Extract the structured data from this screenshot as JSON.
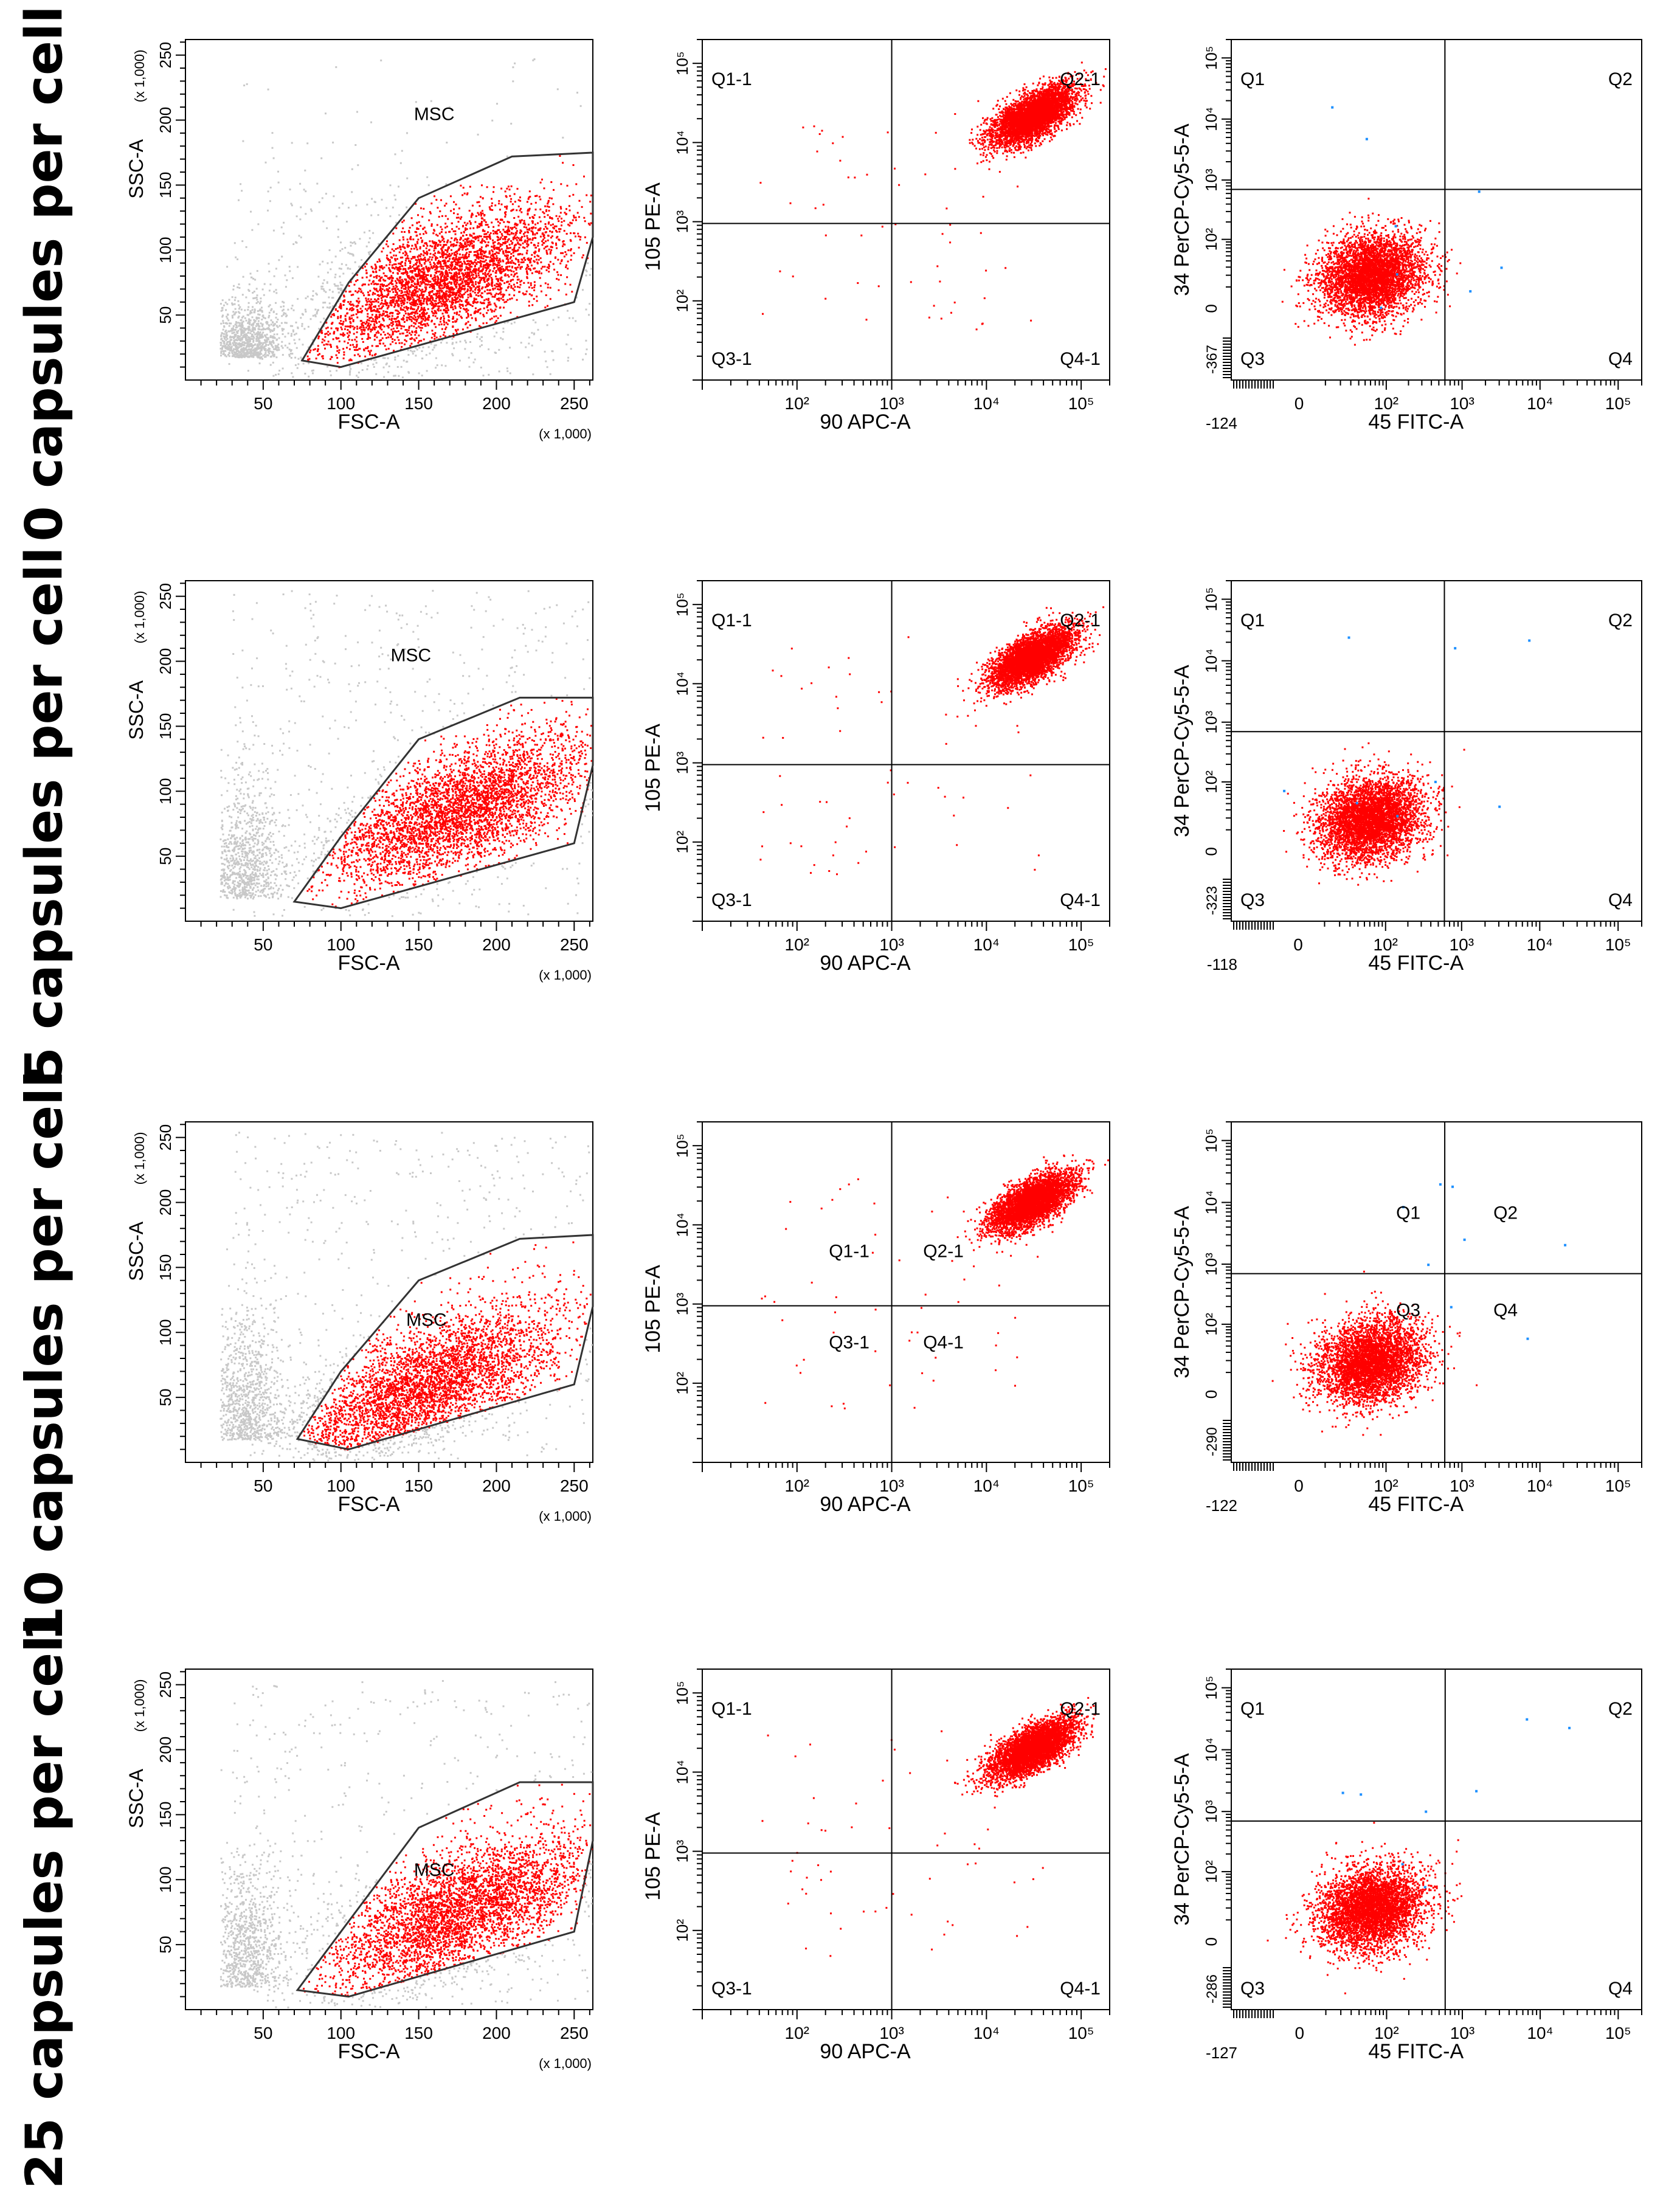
{
  "rows": [
    {
      "label": "0 capsules per cell",
      "gate": {
        "name": "MSC",
        "label_pos": [
          160,
          200
        ],
        "polygon": [
          [
            75,
            15
          ],
          [
            100,
            10
          ],
          [
            250,
            60
          ],
          [
            262,
            110
          ],
          [
            262,
            175
          ],
          [
            210,
            172
          ],
          [
            150,
            140
          ],
          [
            105,
            75
          ]
        ]
      },
      "cloud": {
        "center": [
          165,
          78
        ],
        "density": 9000,
        "max_x": 262
      },
      "quad": {
        "x": 1000,
        "y": 950,
        "labels": {
          "q1": "Q1-1",
          "q2": "Q2-1",
          "q3": "Q3-1",
          "q4": "Q4-1"
        },
        "label_layout": "corner",
        "cloud": {
          "cx": 30000,
          "cy": 22000
        }
      },
      "fitc": {
        "ymin": "-367",
        "xmin": "-124",
        "x": 600,
        "y": 700,
        "labels": {
          "q1": "Q1",
          "q2": "Q2",
          "q3": "Q3",
          "q4": "Q4"
        },
        "label_layout": "corner",
        "cloud": {
          "cx": 60,
          "cy": 20
        }
      }
    },
    {
      "label": "5 capsules per cell",
      "gate": {
        "name": "MSC",
        "label_pos": [
          145,
          200
        ],
        "polygon": [
          [
            70,
            15
          ],
          [
            100,
            10
          ],
          [
            250,
            60
          ],
          [
            262,
            120
          ],
          [
            262,
            172
          ],
          [
            215,
            172
          ],
          [
            150,
            140
          ],
          [
            100,
            65
          ]
        ]
      },
      "cloud": {
        "center": [
          175,
          85
        ],
        "density": 9000,
        "max_x": 262
      },
      "quad": {
        "x": 1000,
        "y": 950,
        "labels": {
          "q1": "Q1-1",
          "q2": "Q2-1",
          "q3": "Q3-1",
          "q4": "Q4-1"
        },
        "label_layout": "corner",
        "cloud": {
          "cx": 30000,
          "cy": 22000
        }
      },
      "fitc": {
        "ymin": "-323",
        "xmin": "-118",
        "x": 600,
        "y": 700,
        "labels": {
          "q1": "Q1",
          "q2": "Q2",
          "q3": "Q3",
          "q4": "Q4"
        },
        "label_layout": "corner",
        "cloud": {
          "cx": 60,
          "cy": 20
        }
      }
    },
    {
      "label": "10 capsules per cell",
      "gate": {
        "name": "MSC",
        "label_pos": [
          155,
          105
        ],
        "polygon": [
          [
            72,
            18
          ],
          [
            105,
            10
          ],
          [
            250,
            60
          ],
          [
            262,
            120
          ],
          [
            262,
            175
          ],
          [
            215,
            172
          ],
          [
            150,
            140
          ],
          [
            100,
            70
          ]
        ]
      },
      "cloud": {
        "center": [
          155,
          60
        ],
        "density": 9000,
        "max_x": 262
      },
      "quad": {
        "x": 1000,
        "y": 950,
        "labels": {
          "q1": "Q1-1",
          "q2": "Q2-1",
          "q3": "Q3-1",
          "q4": "Q4-1"
        },
        "label_layout": "center",
        "cloud": {
          "cx": 30000,
          "cy": 20000
        }
      },
      "fitc": {
        "ymin": "-290",
        "xmin": "-122",
        "x": 600,
        "y": 700,
        "labels": {
          "q1": "Q1",
          "q2": "Q2",
          "q3": "Q3",
          "q4": "Q4"
        },
        "label_layout": "center",
        "cloud": {
          "cx": 60,
          "cy": 20
        }
      }
    },
    {
      "label": "25 capsules per cell",
      "gate": {
        "name": "MSC",
        "label_pos": [
          160,
          103
        ],
        "polygon": [
          [
            72,
            15
          ],
          [
            105,
            10
          ],
          [
            250,
            60
          ],
          [
            262,
            130
          ],
          [
            262,
            175
          ],
          [
            215,
            175
          ],
          [
            150,
            140
          ],
          [
            100,
            60
          ]
        ]
      },
      "cloud": {
        "center": [
          175,
          75
        ],
        "density": 9000,
        "max_x": 262
      },
      "quad": {
        "x": 1000,
        "y": 950,
        "labels": {
          "q1": "Q1-1",
          "q2": "Q2-1",
          "q3": "Q3-1",
          "q4": "Q4-1"
        },
        "label_layout": "corner",
        "cloud": {
          "cx": 30000,
          "cy": 20000
        }
      },
      "fitc": {
        "ymin": "-286",
        "xmin": "-127",
        "x": 600,
        "y": 700,
        "labels": {
          "q1": "Q1",
          "q2": "Q2",
          "q3": "Q3",
          "q4": "Q4"
        },
        "label_layout": "corner",
        "cloud": {
          "cx": 60,
          "cy": 20
        }
      }
    }
  ],
  "chart_data": [
    {
      "type": "scatter",
      "title": "",
      "xlabel": "FSC-A",
      "ylabel": "SSC-A",
      "x_scale_note": "(x 1,000)",
      "y_scale_note": "(x 1,000)",
      "xlim": [
        0,
        262
      ],
      "ylim": [
        0,
        262
      ],
      "x_ticks": [
        "50",
        "100",
        "150",
        "200",
        "250"
      ],
      "y_ticks": [
        "50",
        "100",
        "150",
        "200",
        "250"
      ],
      "gate_label": "MSC",
      "colors": {
        "gated": "#ff0000",
        "ungated": "#c8c8c8"
      }
    },
    {
      "type": "scatter",
      "title": "",
      "xlabel": "90 APC-A",
      "ylabel": "105 PE-A",
      "x_log_range": [
        10,
        200000
      ],
      "y_log_range": [
        10,
        200000
      ],
      "x_ticks": [
        "10²",
        "10³",
        "10⁴",
        "10⁵"
      ],
      "y_ticks": [
        "10²",
        "10³",
        "10⁴",
        "10⁵"
      ],
      "quadrants": [
        "Q1-1",
        "Q2-1",
        "Q3-1",
        "Q4-1"
      ],
      "colors": {
        "points": "#ff0000"
      }
    },
    {
      "type": "scatter",
      "title": "",
      "xlabel": "45 FITC-A",
      "ylabel": "34 PerCP-Cy5-5-A",
      "x_ticks": [
        "0",
        "10²",
        "10³",
        "10⁴",
        "10⁵"
      ],
      "y_ticks": [
        "0",
        "10²",
        "10³",
        "10⁴",
        "10⁵"
      ],
      "quadrants": [
        "Q1",
        "Q2",
        "Q3",
        "Q4"
      ],
      "colors": {
        "points": "#ff0000",
        "rare_points": "#1e90ff"
      }
    }
  ]
}
